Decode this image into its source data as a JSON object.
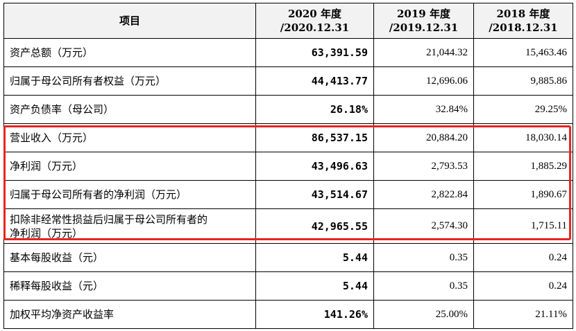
{
  "header": {
    "item": "项目",
    "col2020": [
      "2020 年度",
      "/2020.12.31"
    ],
    "col2019": [
      "2019 年度",
      "/2019.12.31"
    ],
    "col2018": [
      "2018 年度",
      "/2018.12.31"
    ]
  },
  "rows": [
    {
      "label": "资产总额（万元）",
      "v2020": "63,391.59",
      "v2019": "21,044.32",
      "v2018": "15,463.46"
    },
    {
      "label": "归属于母公司所有者权益（万元）",
      "v2020": "44,413.77",
      "v2019": "12,696.06",
      "v2018": "9,885.86"
    },
    {
      "label": "资产负债率（母公司）",
      "v2020": "26.18%",
      "v2019": "32.84%",
      "v2018": "29.25%"
    },
    {
      "label": "营业收入（万元）",
      "v2020": "86,537.15",
      "v2019": "20,884.20",
      "v2018": "18,030.14"
    },
    {
      "label": "净利润（万元）",
      "v2020": "43,496.63",
      "v2019": "2,793.53",
      "v2018": "1,885.29"
    },
    {
      "label": "归属于母公司所有者的净利润（万元）",
      "v2020": "43,514.67",
      "v2019": "2,822.84",
      "v2018": "1,890.67"
    },
    {
      "label": [
        "扣除非经常性损益后归属于母公司所有者的",
        "净利润（万元）"
      ],
      "v2020": "42,965.55",
      "v2019": "2,574.30",
      "v2018": "1,715.11"
    },
    {
      "label": "基本每股收益（元）",
      "v2020": "5.44",
      "v2019": "0.35",
      "v2018": "0.24"
    },
    {
      "label": "稀释每股收益（元）",
      "v2020": "5.44",
      "v2019": "0.35",
      "v2018": "0.24"
    },
    {
      "label": "加权平均净资产收益率",
      "v2020": "141.26%",
      "v2019": "25.00%",
      "v2018": "21.11%"
    }
  ],
  "colors": {
    "highlight_border": "#e8241f",
    "header_bg": "#f2f2f2"
  }
}
